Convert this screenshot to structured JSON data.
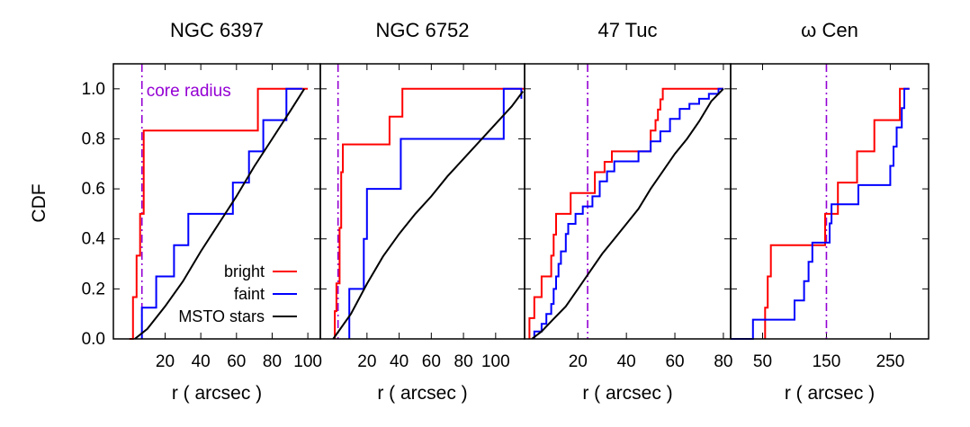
{
  "figure": {
    "ylabel": "CDF",
    "legend_position": "bottom-right of first panel",
    "legend": [
      {
        "label": "bright",
        "color": "#ff0000"
      },
      {
        "label": "faint",
        "color": "#0000ff"
      },
      {
        "label": "MSTO stars",
        "color": "#000000"
      }
    ],
    "annotation": "core radius",
    "colors": {
      "bright": "#ff0000",
      "faint": "#0000ff",
      "msto": "#000000",
      "core_radius": "#9400d3"
    }
  },
  "chart_data": [
    {
      "type": "line",
      "title": "NGC 6397",
      "xlabel": "r ( arcsec )",
      "ylabel": "CDF",
      "xlim": [
        -9,
        107
      ],
      "ylim": [
        0,
        1.1
      ],
      "xticks": [
        20,
        40,
        60,
        80,
        100
      ],
      "yticks": [
        0.0,
        0.2,
        0.4,
        0.6,
        0.8,
        1.0
      ],
      "core_radius": 7,
      "series": [
        {
          "name": "bright",
          "step": true,
          "x": [
            0,
            2,
            4,
            6,
            8,
            72,
            100
          ],
          "y": [
            0,
            0.167,
            0.333,
            0.5,
            0.833,
            1.0,
            1.0
          ]
        },
        {
          "name": "faint",
          "step": true,
          "x": [
            7,
            15,
            25,
            33,
            58,
            67,
            75,
            88,
            97
          ],
          "y": [
            0.125,
            0.25,
            0.375,
            0.5,
            0.625,
            0.75,
            0.875,
            1.0,
            1.0
          ]
        },
        {
          "name": "MSTO stars",
          "step": false,
          "x": [
            3,
            10,
            20,
            30,
            40,
            50,
            60,
            70,
            80,
            90,
            98
          ],
          "y": [
            0,
            0.04,
            0.13,
            0.23,
            0.35,
            0.46,
            0.57,
            0.69,
            0.8,
            0.91,
            1.0
          ]
        }
      ]
    },
    {
      "type": "line",
      "title": "NGC 6752",
      "xlabel": "r ( arcsec )",
      "ylabel": "",
      "xlim": [
        -9,
        118
      ],
      "ylim": [
        0,
        1.1
      ],
      "xticks": [
        20,
        40,
        60,
        80,
        100
      ],
      "yticks": [
        0.0,
        0.2,
        0.4,
        0.6,
        0.8,
        1.0
      ],
      "core_radius": 2,
      "series": [
        {
          "name": "bright",
          "step": true,
          "x": [
            0,
            1,
            3,
            4,
            5,
            14,
            34,
            42,
            118
          ],
          "y": [
            0.111,
            0.222,
            0.444,
            0.667,
            0.778,
            0.778,
            0.889,
            1.0,
            1.0
          ]
        },
        {
          "name": "faint",
          "step": true,
          "x": [
            9,
            18,
            20,
            41,
            105,
            111,
            116
          ],
          "y": [
            0.2,
            0.4,
            0.6,
            0.8,
            1.0,
            1.0,
            0.96
          ]
        },
        {
          "name": "MSTO stars",
          "step": false,
          "x": [
            -1,
            10,
            20,
            30,
            40,
            50,
            60,
            70,
            80,
            90,
            100,
            110,
            117
          ],
          "y": [
            0,
            0.1,
            0.22,
            0.33,
            0.42,
            0.5,
            0.57,
            0.65,
            0.72,
            0.79,
            0.86,
            0.93,
            0.99
          ]
        }
      ]
    },
    {
      "type": "line",
      "title": "47 Tuc",
      "xlabel": "r ( arcsec )",
      "ylabel": "",
      "xlim": [
        -2,
        83
      ],
      "ylim": [
        0,
        1.1
      ],
      "xticks": [
        20,
        40,
        60,
        80
      ],
      "yticks": [
        0.0,
        0.2,
        0.4,
        0.6,
        0.8,
        1.0
      ],
      "core_radius": 24,
      "series": [
        {
          "name": "bright",
          "step": true,
          "x": [
            0,
            2,
            5,
            7,
            9,
            10,
            11,
            13,
            14,
            15,
            17,
            18,
            23,
            26,
            27,
            28,
            31,
            32,
            34,
            40,
            50,
            52,
            53,
            54,
            55,
            65,
            75,
            80
          ],
          "y": [
            0.083,
            0.167,
            0.25,
            0.25,
            0.333,
            0.417,
            0.5,
            0.5,
            0.5,
            0.5,
            0.583,
            0.583,
            0.583,
            0.583,
            0.667,
            0.667,
            0.708,
            0.708,
            0.75,
            0.75,
            0.833,
            0.875,
            0.917,
            0.958,
            1.0,
            1.0,
            1.0,
            1.0
          ]
        },
        {
          "name": "faint",
          "step": true,
          "x": [
            2,
            5,
            7,
            9,
            10,
            11,
            12,
            13,
            15,
            16,
            19,
            22,
            26,
            27,
            29,
            32,
            35,
            40,
            45,
            50,
            54,
            58,
            62,
            66,
            70,
            74,
            78,
            80
          ],
          "y": [
            0.03,
            0.06,
            0.1,
            0.14,
            0.2,
            0.25,
            0.3,
            0.35,
            0.42,
            0.46,
            0.5,
            0.53,
            0.57,
            0.57,
            0.63,
            0.67,
            0.71,
            0.71,
            0.75,
            0.79,
            0.83,
            0.88,
            0.92,
            0.94,
            0.96,
            0.98,
            1.0,
            1.0
          ]
        },
        {
          "name": "MSTO stars",
          "step": false,
          "x": [
            1,
            5,
            10,
            15,
            20,
            25,
            30,
            35,
            40,
            45,
            50,
            55,
            60,
            65,
            70,
            75,
            80
          ],
          "y": [
            0,
            0.03,
            0.08,
            0.13,
            0.2,
            0.27,
            0.34,
            0.4,
            0.46,
            0.52,
            0.6,
            0.67,
            0.74,
            0.8,
            0.87,
            0.95,
            1.0
          ]
        }
      ]
    },
    {
      "type": "line",
      "title": "ω Cen",
      "xlabel": "r ( arcsec )",
      "ylabel": "",
      "xlim": [
        0,
        310
      ],
      "ylim": [
        0,
        1.1
      ],
      "xticks": [
        50,
        150,
        250
      ],
      "yticks": [
        0.0,
        0.2,
        0.4,
        0.6,
        0.8,
        1.0
      ],
      "core_radius": 150,
      "series": [
        {
          "name": "bright",
          "step": true,
          "x": [
            54,
            58,
            63,
            128,
            148,
            155,
            168,
            198,
            225,
            265,
            270,
            280
          ],
          "y": [
            0.125,
            0.25,
            0.375,
            0.375,
            0.5,
            0.5,
            0.625,
            0.75,
            0.875,
            1.0,
            1.0,
            1.0
          ]
        },
        {
          "name": "faint",
          "step": true,
          "x": [
            0,
            35,
            100,
            115,
            122,
            128,
            140,
            150,
            155,
            158,
            170,
            200,
            245,
            250,
            255,
            260,
            268,
            272,
            280
          ],
          "y": [
            0,
            0.077,
            0.154,
            0.231,
            0.308,
            0.385,
            0.385,
            0.385,
            0.462,
            0.538,
            0.538,
            0.615,
            0.615,
            0.692,
            0.769,
            0.846,
            0.923,
            1.0,
            1.0
          ]
        }
      ]
    }
  ]
}
